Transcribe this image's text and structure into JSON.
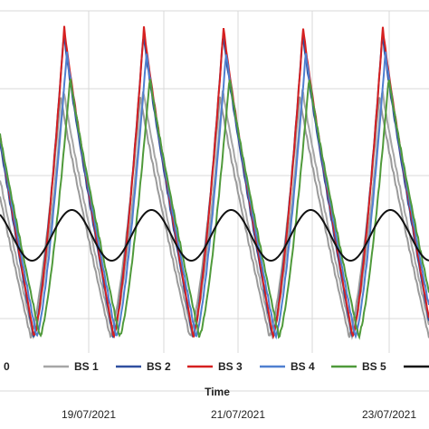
{
  "chart_data": {
    "type": "line",
    "xlabel": "Time",
    "ylabel": "",
    "grid": true,
    "legend_placement": "bottom",
    "x_tick_labels": [
      "19/07/2021",
      "21/07/2021",
      "23/07/2021"
    ],
    "x_ticks_days": [
      1,
      3,
      5
    ],
    "x_range_days": [
      -0.02,
      5.5
    ],
    "ylim": [
      0,
      100
    ],
    "gridlines_y": [
      0,
      25,
      50,
      75,
      100
    ],
    "series": [
      {
        "name": "0",
        "color": "#9a9a9a",
        "amplitude": 0.78,
        "phase_shift": 0.1,
        "note_peaks_scale": [
          0.93,
          0.9,
          0.91,
          0.92,
          0.9
        ]
      },
      {
        "name": "BS 1",
        "color": "#a6a6a6",
        "amplitude": 0.8,
        "phase_shift": 0.15
      },
      {
        "name": "BS 2",
        "color": "#2f4f9f",
        "amplitude": 0.98,
        "phase_shift": 0.07
      },
      {
        "name": "BS 3",
        "color": "#d62020",
        "amplitude": 1.0,
        "phase_shift": 0.0
      },
      {
        "name": "BS 4",
        "color": "#4f7fd0",
        "amplitude": 0.92,
        "phase_shift": 0.04
      },
      {
        "name": "BS 5",
        "color": "#4f9a3a",
        "amplitude": 0.84,
        "phase_shift": 0.12
      },
      {
        "name": "",
        "color": "#111111",
        "amplitude": 0.2,
        "phase_shift": 0.0
      }
    ]
  }
}
